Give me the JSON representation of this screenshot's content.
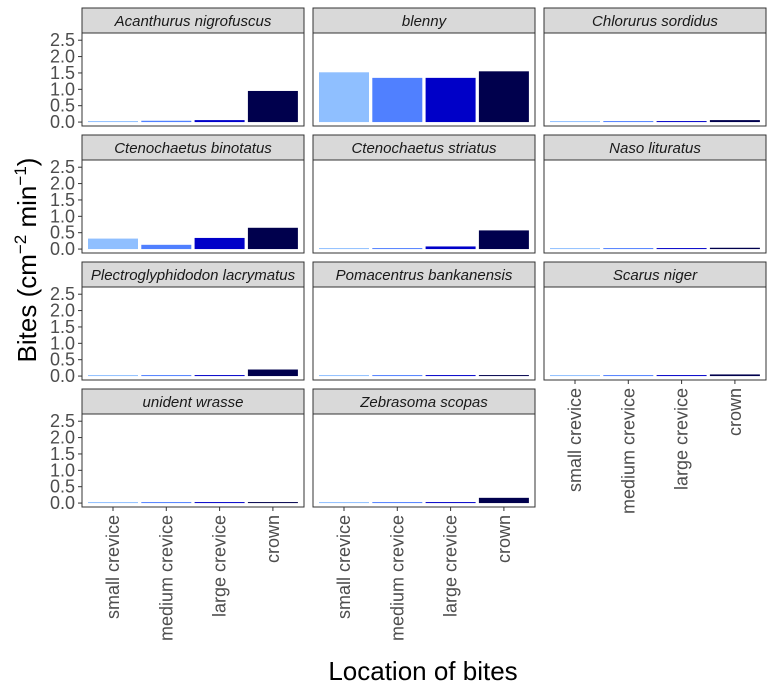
{
  "chart_data": {
    "type": "bar",
    "layout": "facet-grid",
    "xlabel": "Location of bites",
    "ylabel": {
      "main": "Bites (cm",
      "sup1": "−2",
      "mid": " min",
      "sup2": "−1",
      "end": ")"
    },
    "categories": [
      "small crevice",
      "medium crevice",
      "large crevice",
      "crown"
    ],
    "category_colors": [
      "#8fbfff",
      "#5080ff",
      "#0000c8",
      "#00004d"
    ],
    "yticks": [
      "0.0",
      "0.5",
      "1.0",
      "1.5",
      "2.0",
      "2.5"
    ],
    "ylim": [
      -0.12,
      2.72
    ],
    "grid": false,
    "facets": [
      {
        "title": "Acanthurus nigrofuscus",
        "values": [
          0.02,
          0.04,
          0.06,
          0.95
        ]
      },
      {
        "title": "blenny",
        "values": [
          1.52,
          1.35,
          1.35,
          1.55
        ]
      },
      {
        "title": "Chlorurus sordidus",
        "values": [
          0,
          0,
          0,
          0.06
        ]
      },
      {
        "title": "Ctenochaetus binotatus",
        "values": [
          0.32,
          0.13,
          0.34,
          0.65
        ]
      },
      {
        "title": "Ctenochaetus striatus",
        "values": [
          0.01,
          0.01,
          0.08,
          0.57
        ]
      },
      {
        "title": "Naso lituratus",
        "values": [
          0,
          0,
          0.01,
          0.04
        ]
      },
      {
        "title": "Plectroglyphidodon lacrymatus",
        "values": [
          0,
          0,
          0.03,
          0.2
        ]
      },
      {
        "title": "Pomacentrus bankanensis",
        "values": [
          0,
          0,
          0,
          0.01
        ]
      },
      {
        "title": "Scarus niger",
        "values": [
          0,
          0,
          0.02,
          0.05
        ]
      },
      {
        "title": "unident wrasse",
        "values": [
          0,
          0,
          0,
          0.01
        ]
      },
      {
        "title": "Zebrasoma scopas",
        "values": [
          0.01,
          0.01,
          0.03,
          0.16
        ]
      }
    ]
  }
}
